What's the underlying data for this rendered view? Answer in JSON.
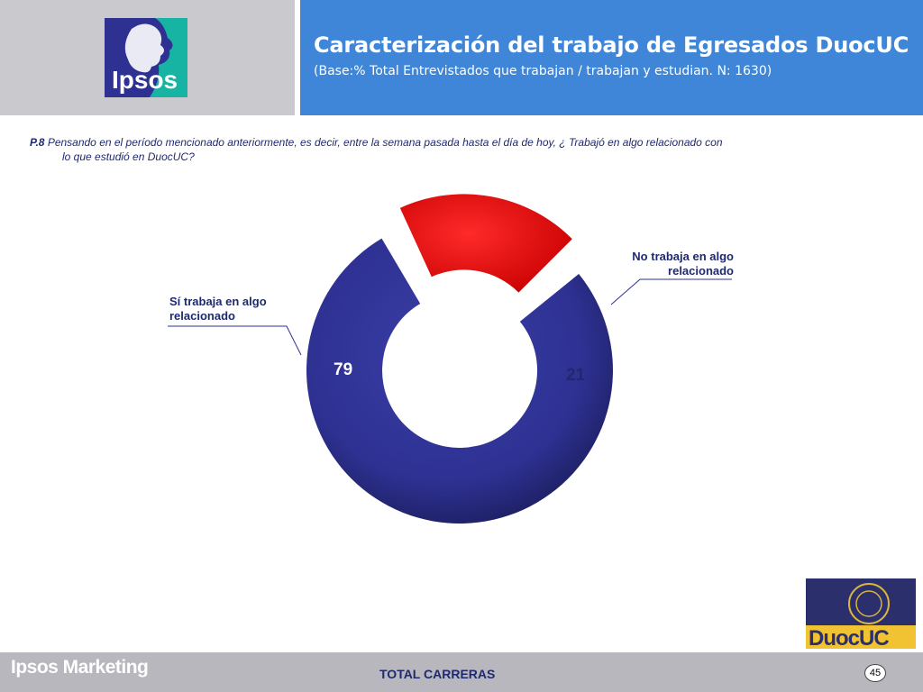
{
  "header": {
    "title": "Caracterización del trabajo de Egresados DuocUC",
    "subtitle": "(Base:% Total Entrevistados que trabajan / trabajan y estudian. N: 1630)",
    "logo_text": "Ipsos"
  },
  "question": {
    "number": "P.8",
    "text_line1": "Pensando en el período mencionado anteriormente, es decir, entre la semana pasada hasta el día de hoy, ¿ Trabajó en algo relacionado con",
    "text_line2": "lo que estudió en DuocUC?"
  },
  "chart_data": {
    "type": "pie",
    "variant": "donut",
    "slices": [
      {
        "label": "Sí trabaja en algo relacionado",
        "value": 79,
        "color": "#2e3192"
      },
      {
        "label": "No trabaja en algo relacionado",
        "value": 21,
        "color": "#ff0000"
      }
    ],
    "value_labels": [
      "79",
      "21"
    ]
  },
  "footer": {
    "brand": "Ipsos Marketing",
    "center": "TOTAL CARRERAS",
    "page_number": "45",
    "partner_logo_text": "DuocUC"
  },
  "colors": {
    "header_blue": "#3f86d8",
    "header_gray": "#c9c9ce",
    "navy": "#2e3192",
    "red": "#ff0000",
    "text_navy": "#1f2a6e"
  }
}
